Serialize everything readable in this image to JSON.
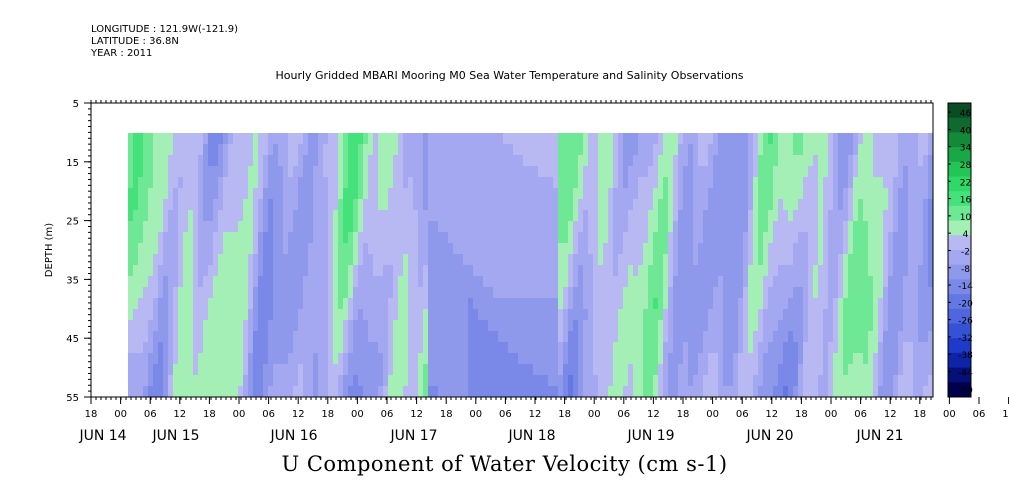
{
  "header": {
    "longitude": "LONGITUDE : 121.9W(-121.9)",
    "latitude": "LATITUDE : 36.8N",
    "year": "YEAR : 2011"
  },
  "chart_data": {
    "type": "heatmap",
    "title": "Hourly Gridded MBARI Mooring M0 Sea Water Temperature and Salinity Observations",
    "xlabel": "U Component of Water Velocity (cm s-1)",
    "ylabel": "DEPTH (m)",
    "ylim": [
      5,
      55
    ],
    "y_inverted": true,
    "y_ticks": [
      5,
      15,
      25,
      35,
      45,
      55
    ],
    "x_hour_ticks": [
      "18",
      "00",
      "06",
      "12",
      "18",
      "00",
      "06",
      "12",
      "18",
      "00",
      "06",
      "12",
      "18",
      "00",
      "06",
      "12",
      "18",
      "00",
      "06",
      "12",
      "18",
      "00",
      "06",
      "12",
      "18",
      "00",
      "06",
      "12",
      "18",
      "00",
      "06",
      "12",
      "18"
    ],
    "x_day_labels": [
      "JUN 14",
      "JUN 15",
      "JUN 16",
      "JUN 17",
      "JUN 18",
      "JUN 19",
      "JUN 20",
      "JUN 21"
    ],
    "colorbar": {
      "labels": [
        "46",
        "40",
        "34",
        "28",
        "22",
        "16",
        "10",
        "4",
        "-2",
        "-8",
        "-14",
        "-20",
        "-26",
        "-32",
        "-38",
        "-44",
        "-50"
      ],
      "colors": [
        "#0a4d22",
        "#0f6a2d",
        "#138a39",
        "#1aa847",
        "#22c556",
        "#2ed967",
        "#45e27c",
        "#6ee894",
        "#a3efb5",
        "#b8b8f2",
        "#a3a8f0",
        "#8f99ec",
        "#7a89e8",
        "#6478e4",
        "#4e66df",
        "#3552d6",
        "#1d3ac8",
        "#0d24a8",
        "#050f78",
        "#00004e"
      ]
    },
    "data_summary": "Velocity field from depth 10 to 55 m, mostly between -20 and +16 cm/s; green (positive) bands alternate with blue (negative) bands across Jun 14-21; smooth negative region approx Jun 17 12:00 to Jun 18 15:00."
  }
}
